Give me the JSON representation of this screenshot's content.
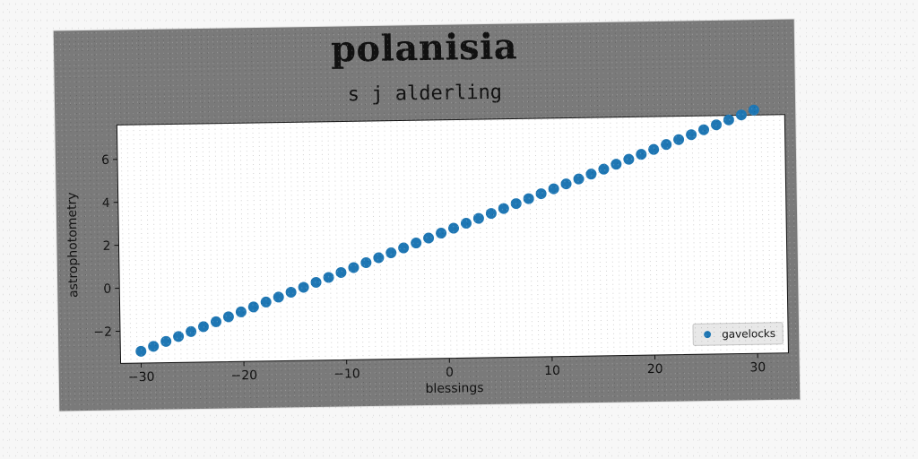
{
  "figure": {
    "title": "polanisia",
    "subtitle": "s j alderling"
  },
  "colors": {
    "figure_bg": "#7a7a7a",
    "plot_bg": "#ffffff",
    "marker": "#1f77b4",
    "text": "#111111"
  },
  "chart_data": {
    "type": "scatter",
    "title": "polanisia",
    "subtitle": "s j alderling",
    "xlabel": "blessings",
    "ylabel": "astrophotometry",
    "xlim": [
      -32,
      33
    ],
    "ylim": [
      -3.5,
      7.6
    ],
    "xticks": [
      -30,
      -20,
      -10,
      0,
      10,
      20,
      30
    ],
    "xtick_labels": [
      "−30",
      "−20",
      "−10",
      "0",
      "10",
      "20",
      "30"
    ],
    "yticks": [
      -2,
      0,
      2,
      4,
      6
    ],
    "ytick_labels": [
      "−2",
      "0",
      "2",
      "4",
      "6"
    ],
    "grid": false,
    "legend_position": "lower-right",
    "series": [
      {
        "name": "gavelocks",
        "x": [
          -30.0,
          -28.78,
          -27.55,
          -26.33,
          -25.1,
          -23.88,
          -22.65,
          -21.43,
          -20.2,
          -18.98,
          -17.76,
          -16.53,
          -15.31,
          -14.08,
          -12.86,
          -11.63,
          -10.41,
          -9.18,
          -7.96,
          -6.73,
          -5.51,
          -4.29,
          -3.06,
          -1.84,
          -0.61,
          0.61,
          1.84,
          3.06,
          4.29,
          5.51,
          6.73,
          7.96,
          9.18,
          10.41,
          11.63,
          12.86,
          14.08,
          15.31,
          16.53,
          17.76,
          18.98,
          20.2,
          21.43,
          22.65,
          23.88,
          25.1,
          26.33,
          27.55,
          28.78,
          30.0
        ],
        "y": [
          -2.95,
          -2.73,
          -2.51,
          -2.29,
          -2.07,
          -1.85,
          -1.63,
          -1.41,
          -1.19,
          -0.97,
          -0.75,
          -0.53,
          -0.31,
          -0.09,
          0.13,
          0.35,
          0.57,
          0.79,
          1.01,
          1.23,
          1.45,
          1.67,
          1.89,
          2.11,
          2.33,
          2.55,
          2.77,
          2.99,
          3.21,
          3.43,
          3.65,
          3.87,
          4.09,
          4.31,
          4.53,
          4.75,
          4.97,
          5.19,
          5.41,
          5.63,
          5.85,
          6.07,
          6.29,
          6.51,
          6.73,
          6.95,
          7.17,
          7.39,
          7.61,
          7.83
        ]
      }
    ]
  }
}
